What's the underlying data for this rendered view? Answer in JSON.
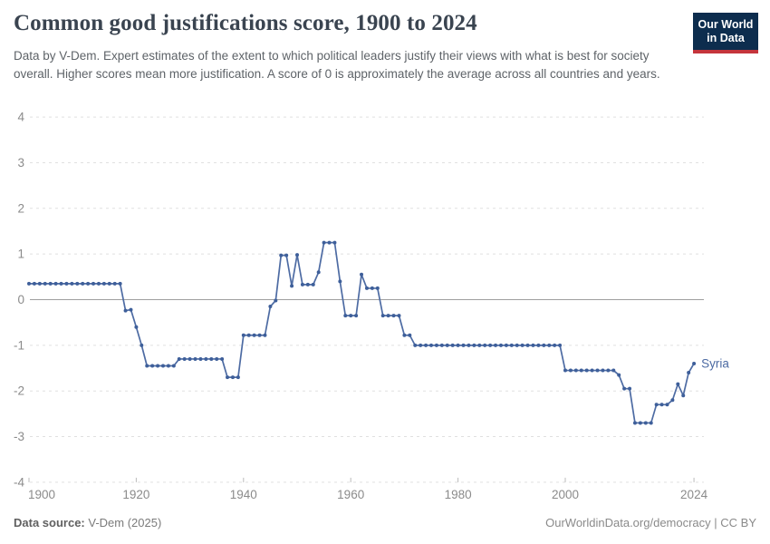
{
  "header": {
    "title": "Common good justifications score, 1900 to 2024",
    "subtitle": "Data by V-Dem. Expert estimates of the extent to which political leaders justify their views with what is best for society overall. Higher scores mean more justification. A score of 0 is approximately the average across all countries and years.",
    "logo": {
      "line1": "Our World",
      "line2": "in Data",
      "bg_color": "#0d2d4e",
      "accent_color": "#c5353c"
    }
  },
  "footer": {
    "source_label": "Data source:",
    "source_value": "V-Dem (2025)",
    "credit": "OurWorldinData.org/democracy | CC BY"
  },
  "chart_data": {
    "type": "line",
    "title": "Common good justifications score, 1900 to 2024",
    "entity": "Syria",
    "xlabel": "",
    "ylabel": "",
    "xlim": [
      1900,
      2024
    ],
    "ylim": [
      -4,
      4
    ],
    "yticks": [
      4,
      3,
      2,
      1,
      0,
      -1,
      -2,
      -3,
      -4
    ],
    "xticks": [
      1900,
      1920,
      1940,
      1960,
      1980,
      2000,
      2024
    ],
    "grid": "horizontal-dashed",
    "zero_line": true,
    "legend_position": "line-end-label",
    "line_color": "#4d6ba3",
    "dot_color": "#3e5f9a",
    "axis_label_color": "#8b8b8b",
    "grid_color": "#e0e0e0",
    "zero_line_color": "#9e9e9e",
    "series": [
      {
        "name": "Syria",
        "color": "#4d6ba3",
        "points": [
          [
            1900,
            0.35
          ],
          [
            1901,
            0.35
          ],
          [
            1902,
            0.35
          ],
          [
            1903,
            0.35
          ],
          [
            1904,
            0.35
          ],
          [
            1905,
            0.35
          ],
          [
            1906,
            0.35
          ],
          [
            1907,
            0.35
          ],
          [
            1908,
            0.35
          ],
          [
            1909,
            0.35
          ],
          [
            1910,
            0.35
          ],
          [
            1911,
            0.35
          ],
          [
            1912,
            0.35
          ],
          [
            1913,
            0.35
          ],
          [
            1914,
            0.35
          ],
          [
            1915,
            0.35
          ],
          [
            1916,
            0.35
          ],
          [
            1917,
            0.35
          ],
          [
            1918,
            -0.24
          ],
          [
            1919,
            -0.22
          ],
          [
            1920,
            -0.6
          ],
          [
            1921,
            -1.0
          ],
          [
            1922,
            -1.45
          ],
          [
            1923,
            -1.45
          ],
          [
            1924,
            -1.45
          ],
          [
            1925,
            -1.45
          ],
          [
            1926,
            -1.45
          ],
          [
            1927,
            -1.45
          ],
          [
            1928,
            -1.3
          ],
          [
            1929,
            -1.3
          ],
          [
            1930,
            -1.3
          ],
          [
            1931,
            -1.3
          ],
          [
            1932,
            -1.3
          ],
          [
            1933,
            -1.3
          ],
          [
            1934,
            -1.3
          ],
          [
            1935,
            -1.3
          ],
          [
            1936,
            -1.3
          ],
          [
            1937,
            -1.7
          ],
          [
            1938,
            -1.7
          ],
          [
            1939,
            -1.7
          ],
          [
            1940,
            -0.78
          ],
          [
            1941,
            -0.78
          ],
          [
            1942,
            -0.78
          ],
          [
            1943,
            -0.78
          ],
          [
            1944,
            -0.78
          ],
          [
            1945,
            -0.15
          ],
          [
            1946,
            -0.02
          ],
          [
            1947,
            0.97
          ],
          [
            1948,
            0.97
          ],
          [
            1949,
            0.3
          ],
          [
            1950,
            0.98
          ],
          [
            1951,
            0.33
          ],
          [
            1952,
            0.33
          ],
          [
            1953,
            0.33
          ],
          [
            1954,
            0.6
          ],
          [
            1955,
            1.25
          ],
          [
            1956,
            1.25
          ],
          [
            1957,
            1.25
          ],
          [
            1958,
            0.4
          ],
          [
            1959,
            -0.35
          ],
          [
            1960,
            -0.35
          ],
          [
            1961,
            -0.35
          ],
          [
            1962,
            0.55
          ],
          [
            1963,
            0.25
          ],
          [
            1964,
            0.25
          ],
          [
            1965,
            0.25
          ],
          [
            1966,
            -0.35
          ],
          [
            1967,
            -0.35
          ],
          [
            1968,
            -0.35
          ],
          [
            1969,
            -0.35
          ],
          [
            1970,
            -0.78
          ],
          [
            1971,
            -0.78
          ],
          [
            1972,
            -1.0
          ],
          [
            1973,
            -1.0
          ],
          [
            1974,
            -1.0
          ],
          [
            1975,
            -1.0
          ],
          [
            1976,
            -1.0
          ],
          [
            1977,
            -1.0
          ],
          [
            1978,
            -1.0
          ],
          [
            1979,
            -1.0
          ],
          [
            1980,
            -1.0
          ],
          [
            1981,
            -1.0
          ],
          [
            1982,
            -1.0
          ],
          [
            1983,
            -1.0
          ],
          [
            1984,
            -1.0
          ],
          [
            1985,
            -1.0
          ],
          [
            1986,
            -1.0
          ],
          [
            1987,
            -1.0
          ],
          [
            1988,
            -1.0
          ],
          [
            1989,
            -1.0
          ],
          [
            1990,
            -1.0
          ],
          [
            1991,
            -1.0
          ],
          [
            1992,
            -1.0
          ],
          [
            1993,
            -1.0
          ],
          [
            1994,
            -1.0
          ],
          [
            1995,
            -1.0
          ],
          [
            1996,
            -1.0
          ],
          [
            1997,
            -1.0
          ],
          [
            1998,
            -1.0
          ],
          [
            1999,
            -1.0
          ],
          [
            2000,
            -1.55
          ],
          [
            2001,
            -1.55
          ],
          [
            2002,
            -1.55
          ],
          [
            2003,
            -1.55
          ],
          [
            2004,
            -1.55
          ],
          [
            2005,
            -1.55
          ],
          [
            2006,
            -1.55
          ],
          [
            2007,
            -1.55
          ],
          [
            2008,
            -1.55
          ],
          [
            2009,
            -1.55
          ],
          [
            2010,
            -1.65
          ],
          [
            2011,
            -1.95
          ],
          [
            2012,
            -1.95
          ],
          [
            2013,
            -2.7
          ],
          [
            2014,
            -2.7
          ],
          [
            2015,
            -2.7
          ],
          [
            2016,
            -2.7
          ],
          [
            2017,
            -2.3
          ],
          [
            2018,
            -2.3
          ],
          [
            2019,
            -2.3
          ],
          [
            2020,
            -2.2
          ],
          [
            2021,
            -1.85
          ],
          [
            2022,
            -2.1
          ],
          [
            2023,
            -1.6
          ],
          [
            2024,
            -1.4
          ]
        ]
      }
    ]
  }
}
